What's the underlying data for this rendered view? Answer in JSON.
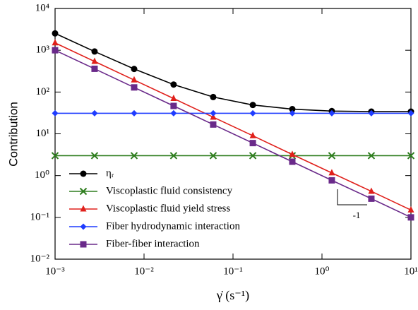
{
  "chart_data": {
    "type": "line",
    "xlabel": "γ̇ (s⁻¹)",
    "ylabel": "Contribution",
    "x": [
      0.001,
      0.00278,
      0.00774,
      0.0215,
      0.0599,
      0.167,
      0.464,
      1.29,
      3.59,
      10
    ],
    "series": [
      {
        "name": "ηᵣ",
        "color": "#000000",
        "marker": "circle",
        "values": [
          2534,
          934,
          357,
          151,
          76,
          49,
          39,
          35,
          34,
          34
        ]
      },
      {
        "name": "Viscoplastic fluid consistency",
        "color": "#2e7d1e",
        "marker": "x",
        "values": [
          3,
          3,
          3,
          3,
          3,
          3,
          3,
          3,
          3,
          3
        ]
      },
      {
        "name": "Viscoplastic fluid yield stress",
        "color": "#e0201b",
        "marker": "triangle",
        "values": [
          1500,
          540,
          194,
          70,
          25,
          9,
          3.2,
          1.16,
          0.42,
          0.15
        ]
      },
      {
        "name": "Fiber hydrodynamic interaction",
        "color": "#1f3cff",
        "marker": "diamond",
        "values": [
          31,
          31,
          31,
          31,
          31,
          31,
          31,
          31,
          31,
          31
        ]
      },
      {
        "name": "Fiber-fiber interaction",
        "color": "#6a2a8a",
        "marker": "square",
        "values": [
          1000,
          360,
          129,
          46.5,
          16.7,
          6.0,
          2.15,
          0.77,
          0.28,
          0.1
        ]
      }
    ],
    "xscale": "log",
    "yscale": "log",
    "xlim": [
      0.001,
      10
    ],
    "ylim": [
      0.01,
      10000
    ],
    "xticks": [
      {
        "value": 0.001,
        "label": "10⁻³"
      },
      {
        "value": 0.01,
        "label": "10⁻²"
      },
      {
        "value": 0.1,
        "label": "10⁻¹"
      },
      {
        "value": 1,
        "label": "10⁰"
      },
      {
        "value": 10,
        "label": "10¹"
      }
    ],
    "yticks": [
      {
        "value": 0.01,
        "label": "10⁻²"
      },
      {
        "value": 0.1,
        "label": "10⁻¹"
      },
      {
        "value": 1,
        "label": "10⁰"
      },
      {
        "value": 10,
        "label": "10¹"
      },
      {
        "value": 100,
        "label": "10²"
      },
      {
        "value": 1000,
        "label": "10³"
      },
      {
        "value": 10000,
        "label": "10⁴"
      }
    ],
    "annotations": [
      "-1"
    ],
    "legend": "lower left"
  }
}
